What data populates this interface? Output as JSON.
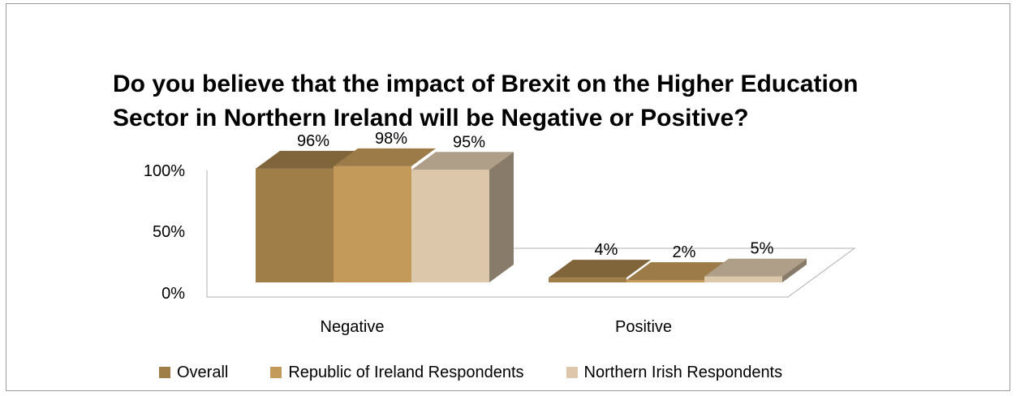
{
  "chart_data": {
    "type": "bar",
    "title_lines": [
      "Do you believe that the impact of Brexit on the Higher Education",
      "Sector in Northern Ireland will be Negative or Positive?"
    ],
    "categories": [
      "Negative",
      "Positive"
    ],
    "series": [
      {
        "name": "Overall",
        "values": [
          96,
          4
        ],
        "labels": [
          "96%",
          "4%"
        ],
        "color": "#a07e48"
      },
      {
        "name": "Republic of Ireland Respondents",
        "values": [
          98,
          2
        ],
        "labels": [
          "98%",
          "2%"
        ],
        "color": "#c49a5a"
      },
      {
        "name": "Northern Irish Respondents",
        "values": [
          95,
          5
        ],
        "labels": [
          "95%",
          "5%"
        ],
        "color": "#dcc7aa"
      }
    ],
    "y_ticks": [
      "0%",
      "50%",
      "100%"
    ],
    "ylim": [
      0,
      100
    ],
    "three_d": true,
    "grid": false,
    "legend": "bottom"
  }
}
